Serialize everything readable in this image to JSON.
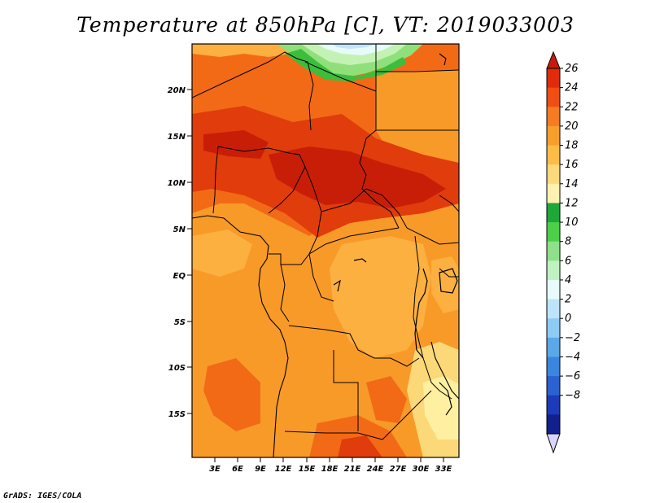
{
  "title": "Temperature at 850hPa [C], VT: 2019033003",
  "footer": "GrADS: IGES/COLA",
  "map": {
    "lat_labels": [
      "20N",
      "15N",
      "10N",
      "5N",
      "EQ",
      "5S",
      "10S",
      "15S"
    ],
    "lon_labels": [
      "3E",
      "6E",
      "9E",
      "12E",
      "15E",
      "18E",
      "21E",
      "24E",
      "27E",
      "30E",
      "33E"
    ],
    "fill_colors": {
      "t14_16": "#fef0a0",
      "t16_18": "#fcd978",
      "t18_20": "#fbb040",
      "t20_22": "#f89a28",
      "t22_24": "#f26a16",
      "t24_26": "#e03c0c",
      "t26_plus": "#c81e08",
      "t10_12": "#8fe07a",
      "t12_14": "#3cbe3c",
      "t8_10": "#c4f2b4",
      "t6_8": "#e6fbfa",
      "t4_6": "#bfe4fb"
    }
  },
  "colorbar": {
    "labels": [
      "26",
      "24",
      "22",
      "20",
      "18",
      "16",
      "14",
      "12",
      "10",
      "8",
      "6",
      "4",
      "2",
      "0",
      "−2",
      "−4",
      "−6",
      "−8"
    ],
    "colors": [
      "#e02c0a",
      "#f04e12",
      "#f57c22",
      "#f89e2c",
      "#fbbd48",
      "#fcd97a",
      "#fff2b0",
      "#1ea83a",
      "#4cd04a",
      "#8ee08a",
      "#bff2c0",
      "#e6fbfa",
      "#bde4fa",
      "#8ecbf4",
      "#5aa8e8",
      "#3a86df",
      "#2a62cf",
      "#1c3ab9",
      "#12208e"
    ],
    "over_color": "#c81a0a",
    "under_color": "#d6d6ff"
  }
}
